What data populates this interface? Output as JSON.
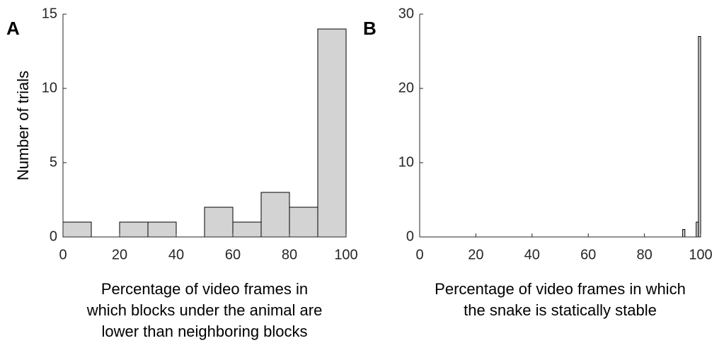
{
  "chart_data": [
    {
      "type": "histogram",
      "panel": "A",
      "ylabel": "Number of trials",
      "xlabel": [
        "Percentage of video frames in",
        "which blocks under the animal are",
        "lower than neighboring blocks"
      ],
      "bins": [
        0,
        10,
        20,
        30,
        40,
        50,
        60,
        70,
        80,
        90,
        100
      ],
      "counts": [
        1,
        0,
        1,
        1,
        0,
        2,
        1,
        3,
        2,
        14
      ],
      "color": "#d3d3d3",
      "xlim": [
        0,
        100
      ],
      "xticks": [
        0,
        20,
        40,
        60,
        80,
        100
      ],
      "ylim": [
        0,
        15
      ],
      "yticks": [
        0,
        5,
        10,
        15
      ]
    },
    {
      "type": "histogram",
      "panel": "B",
      "xlabel": [
        "Percentage of video frames in which",
        "the snake is statically stable"
      ],
      "bins": [
        93.6,
        94.4,
        95.2,
        96,
        96.8,
        97.6,
        98.4,
        99.2,
        100
      ],
      "counts": [
        1,
        0,
        0,
        0,
        0,
        0,
        2,
        27
      ],
      "color": "#d3d3d3",
      "xlim": [
        0,
        100
      ],
      "xticks": [
        0,
        20,
        40,
        60,
        80,
        100
      ],
      "ylim": [
        0,
        30
      ],
      "yticks": [
        0,
        10,
        20,
        30
      ]
    }
  ]
}
